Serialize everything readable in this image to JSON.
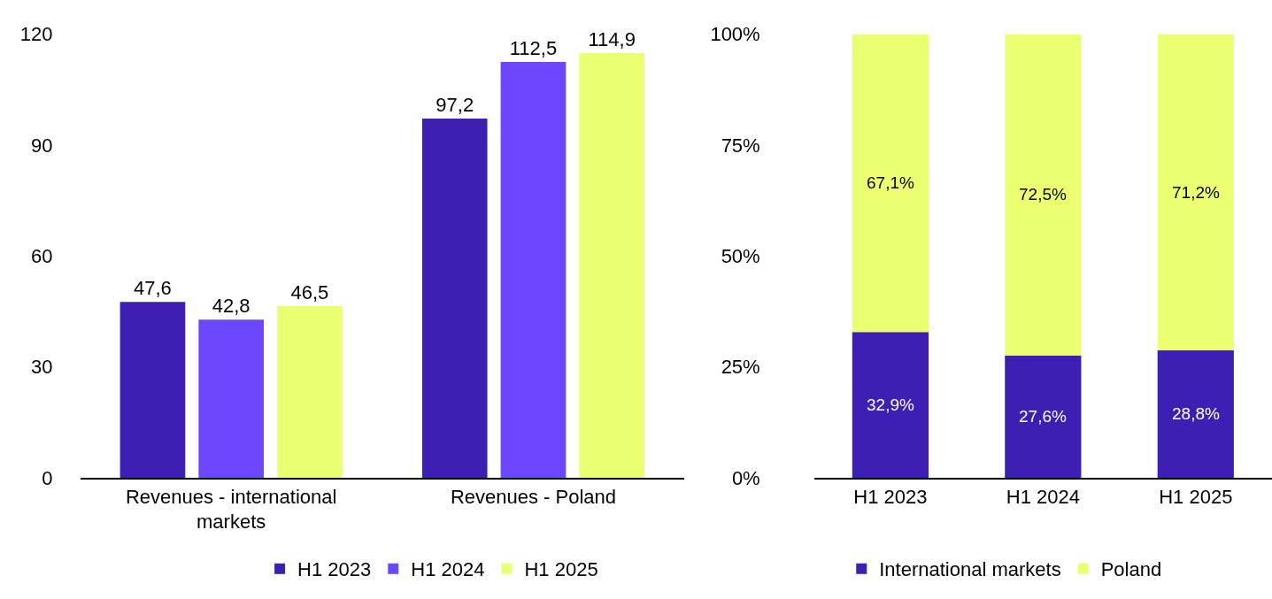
{
  "chart_data": [
    {
      "type": "bar",
      "categories": [
        "Revenues - international markets",
        "Revenues - Poland"
      ],
      "series": [
        {
          "name": "H1 2023",
          "color": "#3d1fb3",
          "values": [
            47.6,
            97.2
          ],
          "value_labels": [
            "47,6",
            "97,2"
          ]
        },
        {
          "name": "H1 2024",
          "color": "#6c47ff",
          "values": [
            42.8,
            112.5
          ],
          "value_labels": [
            "42,8",
            "112,5"
          ]
        },
        {
          "name": "H1 2025",
          "color": "#ecff70",
          "values": [
            46.5,
            114.9
          ],
          "value_labels": [
            "46,5",
            "114,9"
          ]
        }
      ],
      "ylim": [
        0,
        120
      ],
      "yticks": [
        0,
        30,
        60,
        90,
        120
      ],
      "legend": "bottom"
    },
    {
      "type": "bar",
      "stacked": true,
      "categories": [
        "H1 2023",
        "H1 2024",
        "H1 2025"
      ],
      "series": [
        {
          "name": "International markets",
          "color": "#3d1fb3",
          "values": [
            32.9,
            27.6,
            28.8
          ],
          "value_labels": [
            "32,9%",
            "27,6%",
            "28,8%"
          ]
        },
        {
          "name": "Poland",
          "color": "#ecff70",
          "values": [
            67.1,
            72.5,
            71.2
          ],
          "value_labels": [
            "67,1%",
            "72,5%",
            "71,2%"
          ]
        }
      ],
      "ylim": [
        0,
        100
      ],
      "yticks": [
        {
          "value": 0,
          "label": "0%"
        },
        {
          "value": 25,
          "label": "25%"
        },
        {
          "value": 50,
          "label": "50%"
        },
        {
          "value": 75,
          "label": "75%"
        },
        {
          "value": 100,
          "label": "100%"
        }
      ],
      "legend": "bottom"
    }
  ]
}
